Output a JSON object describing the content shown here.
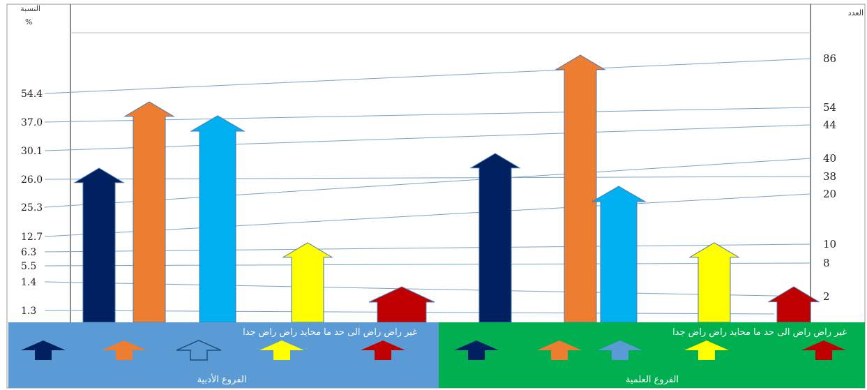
{
  "chart_data": {
    "type": "bar",
    "left_axis": {
      "title": "النسبة",
      "unit": "%",
      "tick_labels": [
        "54.4",
        "37.0",
        "30.1",
        "26.0",
        "25.3",
        "12.7",
        "6.3",
        "5.5",
        "1.4",
        "1.3"
      ]
    },
    "right_axis": {
      "title": "العدد",
      "tick_labels": [
        "86",
        "54",
        "44",
        "40",
        "38",
        "20",
        "10",
        "8",
        "2"
      ]
    },
    "groups": [
      {
        "name": "الفروع الأدبية",
        "background": "#5b9bd5"
      },
      {
        "name": "الفروع العلمية",
        "background": "#00b050"
      }
    ],
    "categories": [
      "راض جدا",
      "راض",
      "محايد",
      "راض الى حد ما",
      "غير راض"
    ],
    "colors": [
      "#002060",
      "#ed7d31",
      "#00b0f0",
      "#ffff00",
      "#c00000"
    ],
    "series": [
      {
        "name": "الفروع الأدبية",
        "values": [
          38,
          54,
          44,
          10,
          2
        ]
      },
      {
        "name": "الفروع العلمية",
        "values": [
          40,
          86,
          20,
          10,
          2
        ]
      }
    ],
    "legend_labels_text": {
      "literary": "غير راض   راض الى حد ما   محايد   راض   راض جدا",
      "scientific": "غير راض   راض الى حد ما   محايد   راض   راض جدا"
    },
    "grid": false,
    "legend_position": "bottom"
  }
}
